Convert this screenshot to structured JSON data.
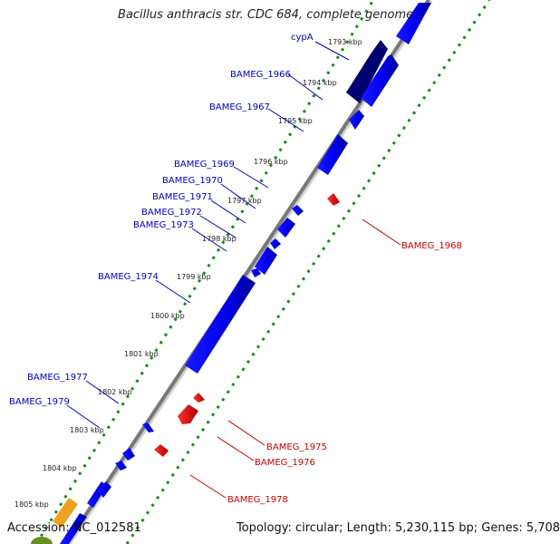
{
  "title": "Bacillus anthracis str. CDC 684, complete genome",
  "footer": {
    "accession": "Accession: NC_012581",
    "topology": "Topology: circular; Length: 5,230,115 bp; Genes: 5,708"
  },
  "colors": {
    "forward_gene": "#0000ee",
    "forward_gene_dark": "#00006e",
    "reverse_gene": "#ee0000",
    "forward_label": "#0000cc",
    "reverse_label": "#cc0000",
    "tick_dots": "#1a8c1a",
    "backbone": "#777777",
    "orange_feature": "#f0a020",
    "olive_feature": "#6b8e23"
  },
  "ticks": [
    "1793 kbp",
    "1794 kbp",
    "1795 kbp",
    "1796 kbp",
    "1797 kbp",
    "1798 kbp",
    "1799 kbp",
    "1800 kbp",
    "1801 kbp",
    "1802 kbp",
    "1803 kbp",
    "1804 kbp",
    "1805 kbp"
  ],
  "forward_labels": [
    "cypA",
    "BAMEG_1966",
    "BAMEG_1967",
    "BAMEG_1969",
    "BAMEG_1970",
    "BAMEG_1971",
    "BAMEG_1972",
    "BAMEG_1973",
    "BAMEG_1974",
    "BAMEG_1977",
    "BAMEG_1979"
  ],
  "reverse_labels": [
    "BAMEG_1968",
    "BAMEG_1975",
    "BAMEG_1976",
    "BAMEG_1978"
  ]
}
